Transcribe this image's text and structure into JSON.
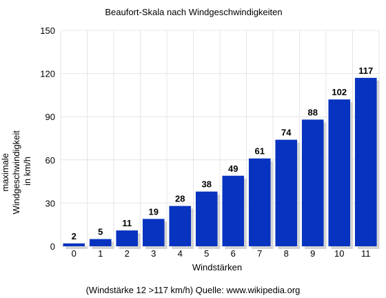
{
  "chart_data": {
    "type": "bar",
    "title": "Beaufort-Skala nach Windgeschwindigkeiten",
    "xlabel": "Windstärken",
    "ylabel_lines": [
      "maximale",
      "Windgeschwindigkeit",
      "in km/h"
    ],
    "footnote": "(Windstärke 12 >117 km/h)  Quelle: www.wikipedia.org",
    "categories": [
      "0",
      "1",
      "2",
      "3",
      "4",
      "5",
      "6",
      "7",
      "8",
      "9",
      "10",
      "11"
    ],
    "values": [
      2,
      5,
      11,
      19,
      28,
      38,
      49,
      61,
      74,
      88,
      102,
      117
    ],
    "data_labels": [
      "2",
      "5",
      "11",
      "19",
      "28",
      "38",
      "49",
      "61",
      "74",
      "88",
      "102",
      "117"
    ],
    "ylim": [
      0,
      150
    ],
    "yticks": [
      0,
      30,
      60,
      90,
      120,
      150
    ],
    "grid": true,
    "legend": "none",
    "colors": {
      "bar": "#0833c0",
      "bar_shadow": "#d4d4d4",
      "grid": "#e4e4e4"
    }
  }
}
